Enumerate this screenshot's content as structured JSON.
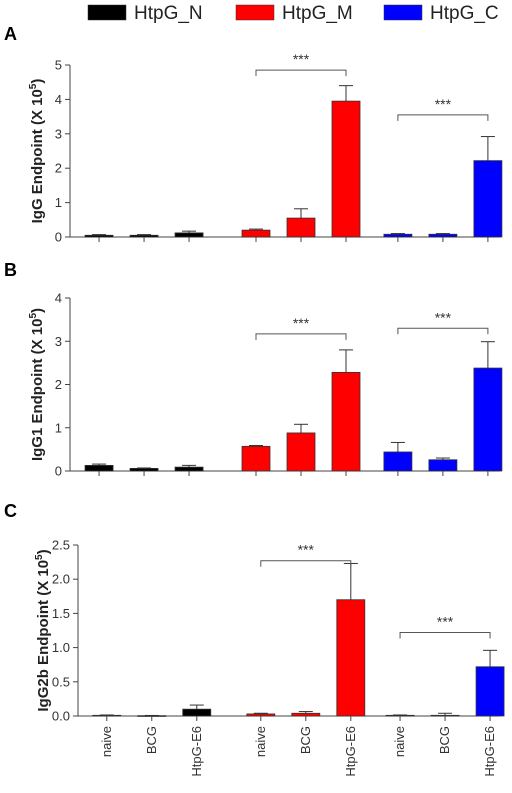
{
  "legend": [
    {
      "name": "HtpG_N",
      "color": "#000000"
    },
    {
      "name": "HtpG_M",
      "color": "#ff0000"
    },
    {
      "name": "HtpG_C",
      "color": "#0000ff"
    }
  ],
  "chart_data": [
    {
      "type": "bar",
      "panel": "A",
      "ylabel_main": "IgG Endpoint (X 10",
      "ylabel_exp": "5",
      "ylabel_end": ")",
      "ylim": [
        0,
        5
      ],
      "yticks": [
        "0",
        "1",
        "2",
        "3",
        "4",
        "5"
      ],
      "categories": [
        "naive",
        "BCG",
        "HtpG-E6"
      ],
      "series": [
        {
          "name": "HtpG_N",
          "color": "#000000",
          "values": [
            0.05,
            0.05,
            0.12
          ],
          "errors": [
            0.02,
            0.02,
            0.05
          ]
        },
        {
          "name": "HtpG_M",
          "color": "#ff0000",
          "values": [
            0.2,
            0.55,
            3.95
          ],
          "errors": [
            0.03,
            0.27,
            0.45
          ]
        },
        {
          "name": "HtpG_C",
          "color": "#0000ff",
          "values": [
            0.08,
            0.08,
            2.22
          ],
          "errors": [
            0.02,
            0.02,
            0.7
          ]
        }
      ],
      "annotations": [
        {
          "text": "***",
          "series": 1,
          "y": 4.85
        },
        {
          "text": "***",
          "series": 2,
          "y": 3.55
        }
      ]
    },
    {
      "type": "bar",
      "panel": "B",
      "ylabel_main": "IgG1 Endpoint (X 10",
      "ylabel_exp": "5",
      "ylabel_end": ")",
      "ylim": [
        0,
        4
      ],
      "yticks": [
        "0",
        "1",
        "2",
        "3",
        "4"
      ],
      "categories": [
        "naive",
        "BCG",
        "HtpG-E6"
      ],
      "series": [
        {
          "name": "HtpG_N",
          "color": "#000000",
          "values": [
            0.13,
            0.06,
            0.09
          ],
          "errors": [
            0.03,
            0.01,
            0.04
          ]
        },
        {
          "name": "HtpG_M",
          "color": "#ff0000",
          "values": [
            0.57,
            0.88,
            2.28
          ],
          "errors": [
            0.02,
            0.2,
            0.52
          ]
        },
        {
          "name": "HtpG_C",
          "color": "#0000ff",
          "values": [
            0.44,
            0.26,
            2.38
          ],
          "errors": [
            0.22,
            0.04,
            0.61
          ]
        }
      ],
      "annotations": [
        {
          "text": "***",
          "series": 1,
          "y": 3.17
        },
        {
          "text": "***",
          "series": 2,
          "y": 3.3
        }
      ]
    },
    {
      "type": "bar",
      "panel": "C",
      "ylabel_main": "IgG2b Endpoint (X 10",
      "ylabel_exp": "5",
      "ylabel_end": ")",
      "ylim": [
        0,
        2.5
      ],
      "yticks": [
        "0.0",
        "0.5",
        "1.0",
        "1.5",
        "2.0",
        "2.5"
      ],
      "categories": [
        "naive",
        "BCG",
        "HtpG-E6"
      ],
      "series": [
        {
          "name": "HtpG_N",
          "color": "#000000",
          "values": [
            0.01,
            0.005,
            0.1
          ],
          "errors": [
            0.005,
            0.003,
            0.06
          ]
        },
        {
          "name": "HtpG_M",
          "color": "#ff0000",
          "values": [
            0.03,
            0.04,
            1.7
          ],
          "errors": [
            0.01,
            0.025,
            0.53
          ]
        },
        {
          "name": "HtpG_C",
          "color": "#0000ff",
          "values": [
            0.01,
            0.01,
            0.72
          ],
          "errors": [
            0.005,
            0.03,
            0.24
          ]
        }
      ],
      "annotations": [
        {
          "text": "***",
          "series": 1,
          "y": 2.27
        },
        {
          "text": "***",
          "series": 2,
          "y": 1.22
        }
      ]
    }
  ]
}
